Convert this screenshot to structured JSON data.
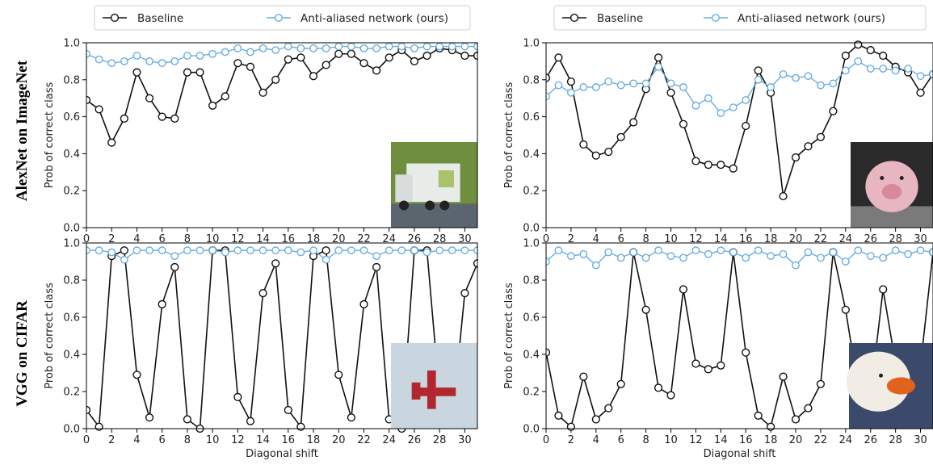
{
  "colors": {
    "baseline": "#111111",
    "antialiased": "#6aaee0",
    "axis": "#000000"
  },
  "figure": {
    "row_labels": [
      "AlexNet on ImageNet",
      "VGG on CIFAR"
    ],
    "legend_labels": [
      "Baseline",
      "Anti-aliased network (ours)"
    ]
  },
  "thumbnails": [
    {
      "name": "garbage-truck-photo",
      "colors": [
        "#6f8f3e",
        "#e8ece9",
        "#5a6570",
        "#a9c26b"
      ]
    },
    {
      "name": "pig-toy-photo",
      "colors": [
        "#2a2a2a",
        "#e8b6c0",
        "#d98a9a",
        "#7a7a7a"
      ]
    },
    {
      "name": "red-airplane-photo",
      "colors": [
        "#c9d6df",
        "#b0282e"
      ]
    },
    {
      "name": "white-duck-photo",
      "colors": [
        "#3b4a6a",
        "#f1ece4",
        "#e1621c"
      ]
    }
  ],
  "chart_data": [
    {
      "type": "line",
      "row": "AlexNet on ImageNet",
      "x": [
        0,
        1,
        2,
        3,
        4,
        5,
        6,
        7,
        8,
        9,
        10,
        11,
        12,
        13,
        14,
        15,
        16,
        17,
        18,
        19,
        20,
        21,
        22,
        23,
        24,
        25,
        26,
        27,
        28,
        29,
        30,
        31
      ],
      "xlim": [
        0,
        31
      ],
      "ylim": [
        0,
        1
      ],
      "xticks": [
        "0",
        "2",
        "4",
        "6",
        "8",
        "10",
        "12",
        "14",
        "16",
        "18",
        "20",
        "22",
        "24",
        "26",
        "28",
        "30"
      ],
      "yticks": [
        "0.0",
        "0.2",
        "0.4",
        "0.6",
        "0.8",
        "1.0"
      ],
      "xlabel": "",
      "ylabel": "Prob of correct class",
      "legend_position": "top",
      "series": [
        {
          "name": "Baseline",
          "values": [
            0.69,
            0.64,
            0.46,
            0.59,
            0.84,
            0.7,
            0.6,
            0.59,
            0.84,
            0.84,
            0.66,
            0.71,
            0.89,
            0.87,
            0.73,
            0.8,
            0.91,
            0.92,
            0.82,
            0.88,
            0.94,
            0.94,
            0.89,
            0.85,
            0.92,
            0.96,
            0.9,
            0.93,
            0.97,
            0.96,
            0.93,
            0.93
          ]
        },
        {
          "name": "Anti-aliased network (ours)",
          "values": [
            0.94,
            0.91,
            0.89,
            0.9,
            0.93,
            0.9,
            0.89,
            0.9,
            0.93,
            0.93,
            0.94,
            0.95,
            0.97,
            0.95,
            0.97,
            0.96,
            0.98,
            0.97,
            0.97,
            0.97,
            0.98,
            0.98,
            0.97,
            0.97,
            0.98,
            0.98,
            0.97,
            0.98,
            0.98,
            0.98,
            0.98,
            0.98
          ]
        }
      ]
    },
    {
      "type": "line",
      "row": "AlexNet on ImageNet",
      "x": [
        0,
        1,
        2,
        3,
        4,
        5,
        6,
        7,
        8,
        9,
        10,
        11,
        12,
        13,
        14,
        15,
        16,
        17,
        18,
        19,
        20,
        21,
        22,
        23,
        24,
        25,
        26,
        27,
        28,
        29,
        30,
        31
      ],
      "xlim": [
        0,
        31
      ],
      "ylim": [
        0,
        1
      ],
      "xticks": [
        "0",
        "2",
        "4",
        "6",
        "8",
        "10",
        "12",
        "14",
        "16",
        "18",
        "20",
        "22",
        "24",
        "26",
        "28",
        "30"
      ],
      "yticks": [
        "0.0",
        "0.2",
        "0.4",
        "0.6",
        "0.8",
        "1.0"
      ],
      "xlabel": "",
      "ylabel": "Prob of correct class",
      "legend_position": "top",
      "series": [
        {
          "name": "Baseline",
          "values": [
            0.81,
            0.92,
            0.79,
            0.45,
            0.39,
            0.41,
            0.49,
            0.57,
            0.75,
            0.92,
            0.73,
            0.56,
            0.36,
            0.34,
            0.34,
            0.32,
            0.55,
            0.85,
            0.73,
            0.17,
            0.38,
            0.44,
            0.49,
            0.63,
            0.93,
            0.99,
            0.96,
            0.93,
            0.87,
            0.84,
            0.73,
            0.83
          ]
        },
        {
          "name": "Anti-aliased network (ours)",
          "values": [
            0.71,
            0.77,
            0.73,
            0.76,
            0.76,
            0.79,
            0.77,
            0.78,
            0.78,
            0.87,
            0.78,
            0.76,
            0.66,
            0.7,
            0.62,
            0.65,
            0.69,
            0.8,
            0.76,
            0.83,
            0.81,
            0.82,
            0.77,
            0.78,
            0.85,
            0.9,
            0.86,
            0.86,
            0.85,
            0.86,
            0.82,
            0.83
          ]
        }
      ]
    },
    {
      "type": "line",
      "row": "VGG on CIFAR",
      "x": [
        0,
        1,
        2,
        3,
        4,
        5,
        6,
        7,
        8,
        9,
        10,
        11,
        12,
        13,
        14,
        15,
        16,
        17,
        18,
        19,
        20,
        21,
        22,
        23,
        24,
        25,
        26,
        27,
        28,
        29,
        30,
        31
      ],
      "xlim": [
        0,
        31
      ],
      "ylim": [
        0,
        1
      ],
      "xticks": [
        "0",
        "2",
        "4",
        "6",
        "8",
        "10",
        "12",
        "14",
        "16",
        "18",
        "20",
        "22",
        "24",
        "26",
        "28",
        "30"
      ],
      "yticks": [
        "0.0",
        "0.2",
        "0.4",
        "0.6",
        "0.8",
        "1.0"
      ],
      "xlabel": "Diagonal shift",
      "ylabel": "Prob of correct class",
      "series": [
        {
          "name": "Baseline",
          "values": [
            0.1,
            0.01,
            0.93,
            0.96,
            0.29,
            0.06,
            0.67,
            0.87,
            0.05,
            0.0,
            0.96,
            0.96,
            0.17,
            0.04,
            0.73,
            0.89,
            0.1,
            0.01,
            0.93,
            0.96,
            0.29,
            0.06,
            0.67,
            0.87,
            0.05,
            0.0,
            0.96,
            0.96,
            0.17,
            0.04,
            0.73,
            0.89
          ]
        },
        {
          "name": "Anti-aliased network (ours)",
          "values": [
            0.96,
            0.96,
            0.95,
            0.91,
            0.96,
            0.96,
            0.96,
            0.93,
            0.96,
            0.96,
            0.96,
            0.95,
            0.96,
            0.96,
            0.96,
            0.96,
            0.96,
            0.95,
            0.96,
            0.91,
            0.96,
            0.96,
            0.96,
            0.93,
            0.96,
            0.96,
            0.96,
            0.95,
            0.96,
            0.96,
            0.96,
            0.96
          ]
        }
      ]
    },
    {
      "type": "line",
      "row": "VGG on CIFAR",
      "x": [
        0,
        1,
        2,
        3,
        4,
        5,
        6,
        7,
        8,
        9,
        10,
        11,
        12,
        13,
        14,
        15,
        16,
        17,
        18,
        19,
        20,
        21,
        22,
        23,
        24,
        25,
        26,
        27,
        28,
        29,
        30,
        31
      ],
      "xlim": [
        0,
        31
      ],
      "ylim": [
        0,
        1
      ],
      "xticks": [
        "0",
        "2",
        "4",
        "6",
        "8",
        "10",
        "12",
        "14",
        "16",
        "18",
        "20",
        "22",
        "24",
        "26",
        "28",
        "30"
      ],
      "yticks": [
        "0.0",
        "0.2",
        "0.4",
        "0.6",
        "0.8",
        "1.0"
      ],
      "xlabel": "Diagonal shift",
      "ylabel": "Prob of correct class",
      "series": [
        {
          "name": "Baseline",
          "values": [
            0.41,
            0.07,
            0.01,
            0.28,
            0.05,
            0.11,
            0.24,
            0.95,
            0.64,
            0.22,
            0.18,
            0.75,
            0.35,
            0.32,
            0.34,
            0.95,
            0.41,
            0.07,
            0.01,
            0.28,
            0.05,
            0.11,
            0.24,
            0.95,
            0.64,
            0.22,
            0.18,
            0.75,
            0.35,
            0.32,
            0.34,
            0.95
          ]
        },
        {
          "name": "Anti-aliased network (ours)",
          "values": [
            0.9,
            0.96,
            0.93,
            0.94,
            0.88,
            0.95,
            0.92,
            0.95,
            0.92,
            0.96,
            0.93,
            0.92,
            0.96,
            0.94,
            0.96,
            0.95,
            0.92,
            0.96,
            0.93,
            0.94,
            0.88,
            0.95,
            0.92,
            0.95,
            0.9,
            0.96,
            0.93,
            0.92,
            0.96,
            0.94,
            0.96,
            0.95
          ]
        }
      ]
    }
  ]
}
